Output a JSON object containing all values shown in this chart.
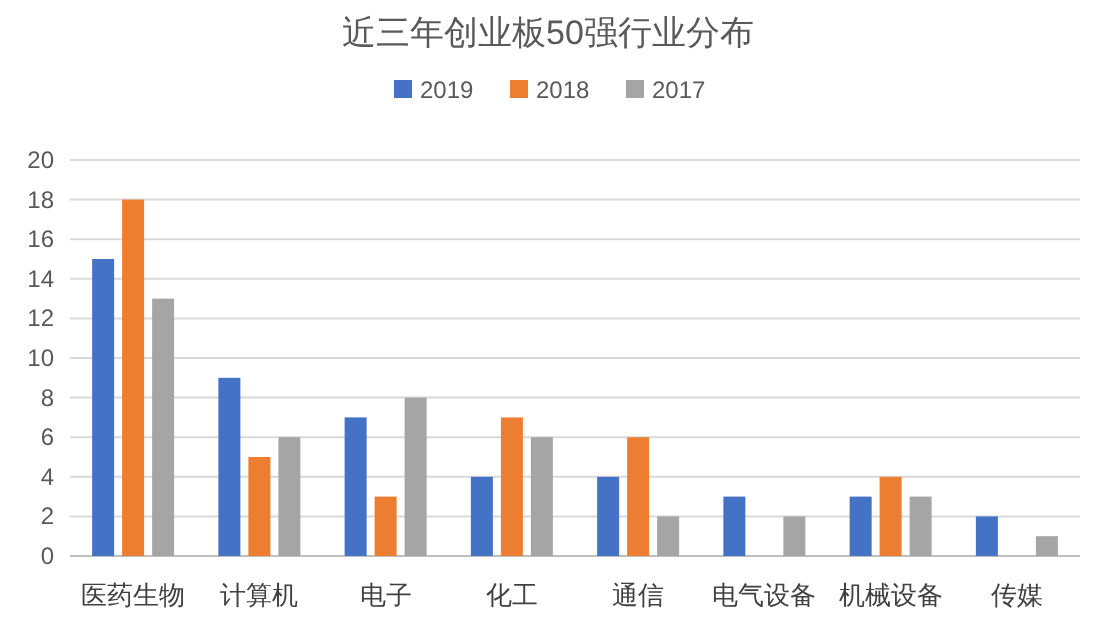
{
  "chart_data": {
    "type": "bar",
    "title": "近三年创业板50强行业分布",
    "categories": [
      "医药生物",
      "计算机",
      "电子",
      "化工",
      "通信",
      "电气设备",
      "机械设备",
      "传媒"
    ],
    "series": [
      {
        "name": "2019",
        "color": "#4472c4",
        "values": [
          15,
          9,
          7,
          4,
          4,
          3,
          3,
          2
        ]
      },
      {
        "name": "2018",
        "color": "#ed7d31",
        "values": [
          18,
          5,
          3,
          7,
          6,
          null,
          4,
          null
        ]
      },
      {
        "name": "2017",
        "color": "#a5a5a5",
        "values": [
          13,
          6,
          8,
          6,
          2,
          2,
          3,
          1
        ]
      }
    ],
    "ylim": [
      0,
      20
    ],
    "yticks": [
      0,
      2,
      4,
      6,
      8,
      10,
      12,
      14,
      16,
      18,
      20
    ],
    "grid": "y",
    "legend": "top"
  }
}
